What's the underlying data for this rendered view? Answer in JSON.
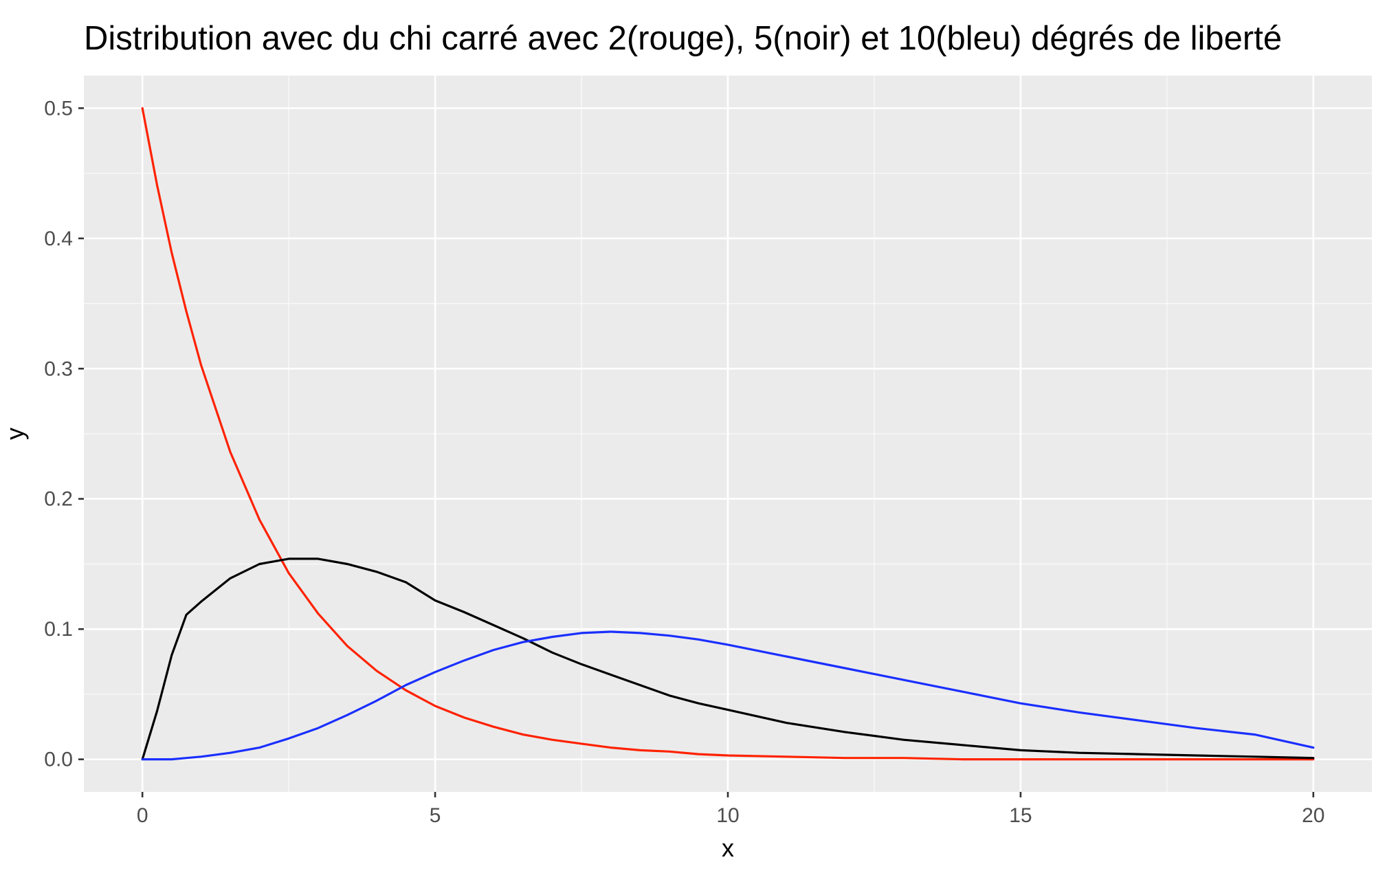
{
  "chart_data": {
    "type": "line",
    "title": "Distribution avec du chi carré avec 2(rouge), 5(noir) et 10(bleu) dégrés de liberté",
    "xlabel": "x",
    "ylabel": "y",
    "xlim": [
      -1,
      21
    ],
    "ylim": [
      -0.025,
      0.525
    ],
    "xticks": [
      0,
      5,
      10,
      15,
      20
    ],
    "xtick_labels": [
      "0",
      "5",
      "10",
      "15",
      "20"
    ],
    "yticks": [
      0.0,
      0.1,
      0.2,
      0.3,
      0.4,
      0.5
    ],
    "ytick_labels": [
      "0.0",
      "0.1",
      "0.2",
      "0.3",
      "0.4",
      "0.5"
    ],
    "grid": true,
    "background": "#ebebeb",
    "x": [
      0,
      0.25,
      0.5,
      0.75,
      1,
      1.5,
      2,
      2.5,
      3,
      3.5,
      4,
      4.5,
      5,
      5.5,
      6,
      6.5,
      7,
      7.5,
      8,
      8.5,
      9,
      9.5,
      10,
      11,
      12,
      13,
      14,
      15,
      16,
      17,
      18,
      19,
      20
    ],
    "series": [
      {
        "color": "#ff2200",
        "values": [
          0.5,
          0.441,
          0.389,
          0.344,
          0.303,
          0.236,
          0.184,
          0.143,
          0.112,
          0.087,
          0.068,
          0.053,
          0.041,
          0.032,
          0.025,
          0.019,
          0.015,
          0.012,
          0.009,
          0.007,
          0.006,
          0.004,
          0.003,
          0.002,
          0.001,
          0.001,
          0.0,
          0.0,
          0.0,
          0.0,
          0.0,
          0.0,
          0.0
        ]
      },
      {
        "color": "#000000",
        "values": [
          0.0,
          0.037,
          0.08,
          0.111,
          0.121,
          0.139,
          0.15,
          0.154,
          0.154,
          0.15,
          0.144,
          0.136,
          0.122,
          0.113,
          0.103,
          0.093,
          0.082,
          0.073,
          0.065,
          0.057,
          0.049,
          0.043,
          0.038,
          0.028,
          0.021,
          0.015,
          0.011,
          0.007,
          0.005,
          0.004,
          0.003,
          0.002,
          0.001
        ]
      },
      {
        "color": "#1a2fff",
        "values": [
          0.0,
          0.0,
          0.0,
          0.001,
          0.002,
          0.005,
          0.009,
          0.016,
          0.024,
          0.034,
          0.045,
          0.057,
          0.067,
          0.076,
          0.084,
          0.09,
          0.094,
          0.097,
          0.098,
          0.097,
          0.095,
          0.092,
          0.088,
          0.079,
          0.07,
          0.061,
          0.052,
          0.043,
          0.036,
          0.03,
          0.024,
          0.019,
          0.009
        ]
      }
    ]
  }
}
